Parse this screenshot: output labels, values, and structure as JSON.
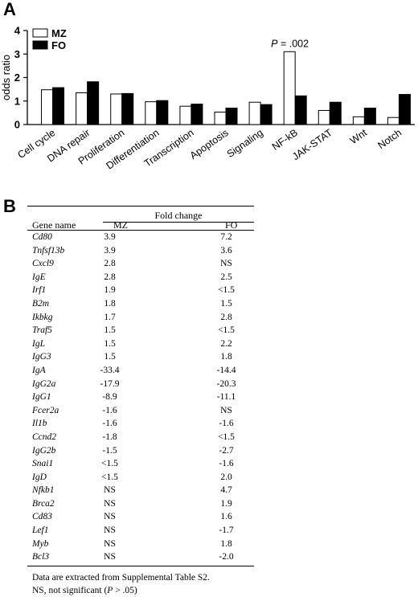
{
  "panel_a": {
    "letter": "A"
  },
  "panel_b": {
    "letter": "B"
  },
  "chart_data": {
    "type": "bar",
    "ylabel": "odds ratio",
    "ylim": [
      0,
      4
    ],
    "yticks": [
      0,
      1,
      2,
      3,
      4
    ],
    "grid": false,
    "legend_position": "top-left",
    "categories": [
      "Cell cycle",
      "DNA repair",
      "Proliferation",
      "Differentiation",
      "Transcription",
      "Apoptosis",
      "Signaling",
      "NF-kB",
      "JAK-STAT",
      "Wnt",
      "Notch"
    ],
    "series": [
      {
        "name": "MZ",
        "fill": "#ffffff",
        "values": [
          1.48,
          1.35,
          1.3,
          0.97,
          0.78,
          0.53,
          0.95,
          3.1,
          0.6,
          0.33,
          0.3
        ]
      },
      {
        "name": "FO",
        "fill": "#000000",
        "values": [
          1.57,
          1.82,
          1.32,
          1.02,
          0.87,
          0.7,
          0.85,
          1.22,
          0.95,
          0.7,
          1.28
        ]
      }
    ],
    "annotation": {
      "category": "NF-kB",
      "text_prefix": "P",
      "text_rest": " = .002"
    }
  },
  "table": {
    "header_group": "Fold change",
    "col_gene": "Gene name",
    "col_mz": "MZ",
    "col_fo": "FO",
    "rows": [
      {
        "gene": "Cd80",
        "mz": "3.9",
        "fo": "7.2"
      },
      {
        "gene": "Tnfsf13b",
        "mz": "3.9",
        "fo": "3.6"
      },
      {
        "gene": "Cxcl9",
        "mz": "2.8",
        "fo": "NS"
      },
      {
        "gene": "IgE",
        "mz": "2.8",
        "fo": "2.5"
      },
      {
        "gene": "Irf1",
        "mz": "1.9",
        "fo": "<1.5"
      },
      {
        "gene": "B2m",
        "mz": "1.8",
        "fo": "1.5"
      },
      {
        "gene": "Ikbkg",
        "mz": "1.7",
        "fo": "2.8"
      },
      {
        "gene": "Traf5",
        "mz": "1.5",
        "fo": "<1.5"
      },
      {
        "gene": "IgL",
        "mz": "1.5",
        "fo": "2.2"
      },
      {
        "gene": "IgG3",
        "mz": "1.5",
        "fo": "1.8"
      },
      {
        "gene": "IgA",
        "mz": "-33.4",
        "fo": "-14.4"
      },
      {
        "gene": "IgG2a",
        "mz": "-17.9",
        "fo": "-20.3"
      },
      {
        "gene": "IgG1",
        "mz": "-8.9",
        "fo": "-11.1"
      },
      {
        "gene": "Fcer2a",
        "mz": "-1.6",
        "fo": "NS"
      },
      {
        "gene": "Il1b",
        "mz": "-1.6",
        "fo": "-1.6"
      },
      {
        "gene": "Ccnd2",
        "mz": "-1.8",
        "fo": "<1.5"
      },
      {
        "gene": "IgG2b",
        "mz": "-1.5",
        "fo": "-2.7"
      },
      {
        "gene": "Snai1",
        "mz": "<1.5",
        "fo": "-1.6"
      },
      {
        "gene": "IgD",
        "mz": "<1.5",
        "fo": "2.0"
      },
      {
        "gene": "Nfkb1",
        "mz": "NS",
        "fo": "4.7"
      },
      {
        "gene": "Brca2",
        "mz": "NS",
        "fo": "1.9"
      },
      {
        "gene": "Cd83",
        "mz": "NS",
        "fo": "1.6"
      },
      {
        "gene": "Lef1",
        "mz": "NS",
        "fo": "-1.7"
      },
      {
        "gene": "Myb",
        "mz": "NS",
        "fo": "1.8"
      },
      {
        "gene": "Bcl3",
        "mz": "NS",
        "fo": "-2.0"
      }
    ],
    "note_line1": "Data are extracted from Supplemental Table S2.",
    "note_line2_pre": "NS, not significant (",
    "note_line2_p": "P",
    "note_line2_post": " > .05)"
  }
}
